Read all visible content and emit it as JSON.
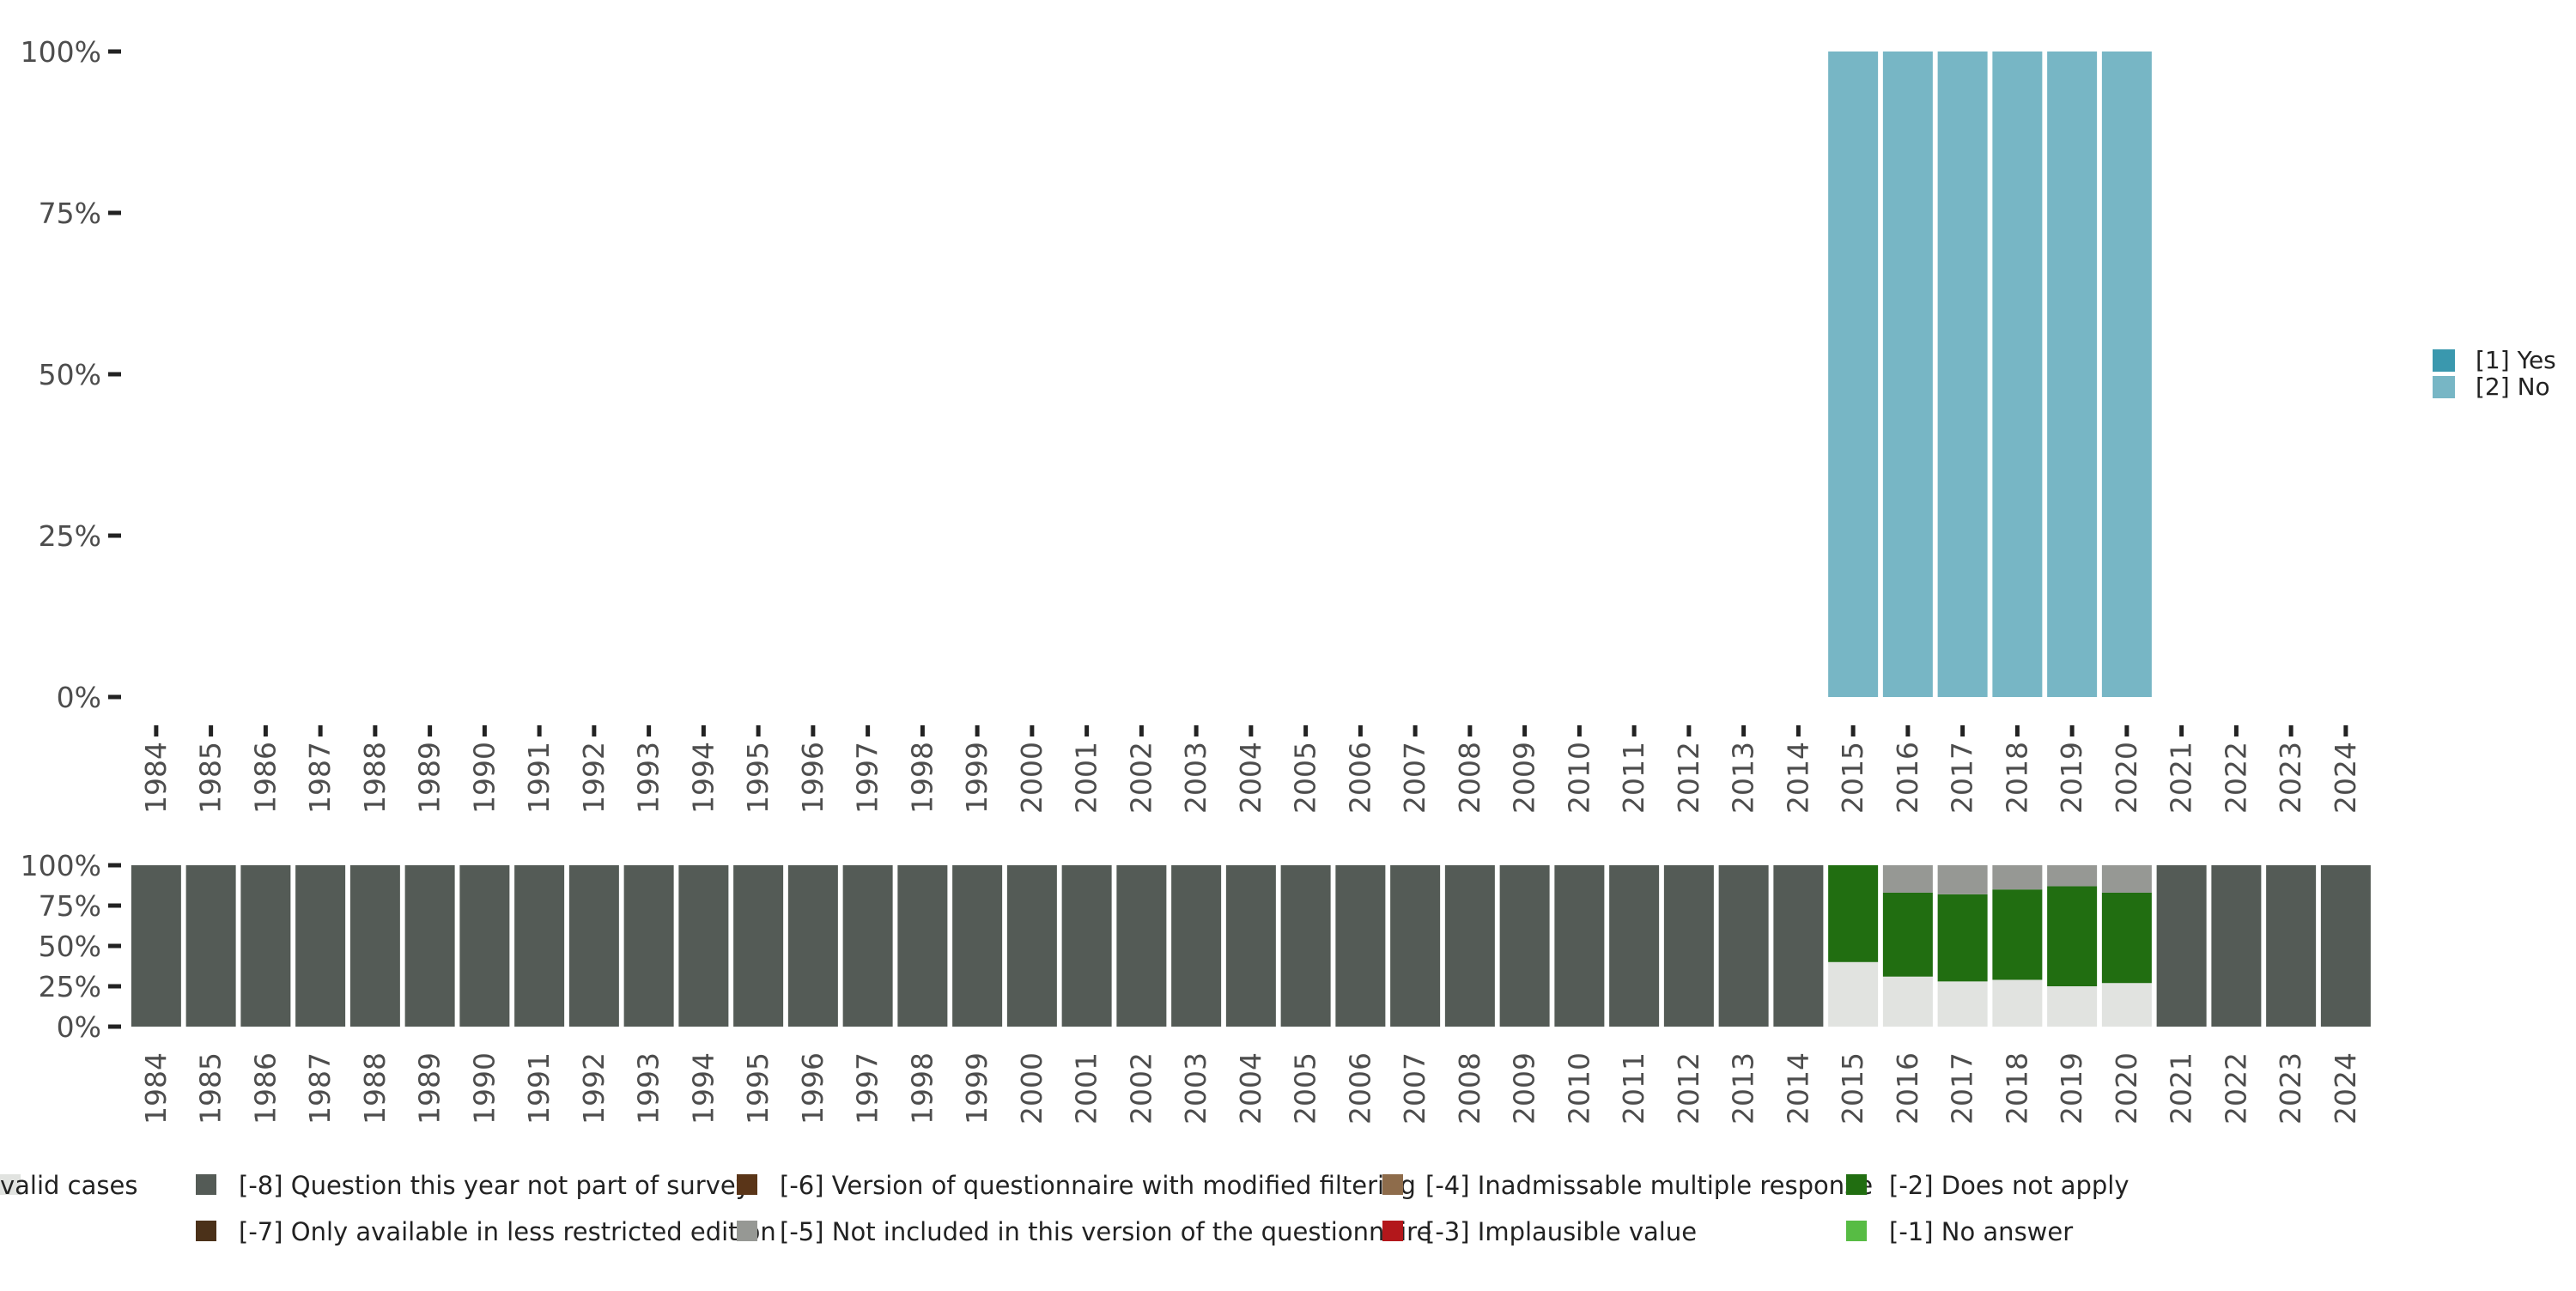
{
  "chart_data": [
    {
      "type": "bar",
      "stacked": true,
      "percent": true,
      "categories": [
        "1984",
        "1985",
        "1986",
        "1987",
        "1988",
        "1989",
        "1990",
        "1991",
        "1992",
        "1993",
        "1994",
        "1995",
        "1996",
        "1997",
        "1998",
        "1999",
        "2000",
        "2001",
        "2002",
        "2003",
        "2004",
        "2005",
        "2006",
        "2007",
        "2008",
        "2009",
        "2010",
        "2011",
        "2012",
        "2013",
        "2014",
        "2015",
        "2016",
        "2017",
        "2018",
        "2019",
        "2020",
        "2021",
        "2022",
        "2023",
        "2024"
      ],
      "series": [
        {
          "name": "[1] Yes",
          "color": "#3a98ae",
          "values": [
            null,
            null,
            null,
            null,
            null,
            null,
            null,
            null,
            null,
            null,
            null,
            null,
            null,
            null,
            null,
            null,
            null,
            null,
            null,
            null,
            null,
            null,
            null,
            null,
            null,
            null,
            null,
            null,
            null,
            null,
            null,
            0,
            0,
            0,
            0,
            0,
            0,
            null,
            null,
            null,
            null
          ]
        },
        {
          "name": "[2] No",
          "color": "#77b6c5",
          "values": [
            null,
            null,
            null,
            null,
            null,
            null,
            null,
            null,
            null,
            null,
            null,
            null,
            null,
            null,
            null,
            null,
            null,
            null,
            null,
            null,
            null,
            null,
            null,
            null,
            null,
            null,
            null,
            null,
            null,
            null,
            null,
            100,
            100,
            100,
            100,
            100,
            100,
            null,
            null,
            null,
            null
          ]
        }
      ],
      "yticks": [
        "0%",
        "25%",
        "50%",
        "75%",
        "100%"
      ],
      "ylim": [
        0,
        100
      ],
      "grid": false,
      "legend": "right"
    },
    {
      "type": "bar",
      "stacked": true,
      "percent": true,
      "categories": [
        "1984",
        "1985",
        "1986",
        "1987",
        "1988",
        "1989",
        "1990",
        "1991",
        "1992",
        "1993",
        "1994",
        "1995",
        "1996",
        "1997",
        "1998",
        "1999",
        "2000",
        "2001",
        "2002",
        "2003",
        "2004",
        "2005",
        "2006",
        "2007",
        "2008",
        "2009",
        "2010",
        "2011",
        "2012",
        "2013",
        "2014",
        "2015",
        "2016",
        "2017",
        "2018",
        "2019",
        "2020",
        "2021",
        "2022",
        "2023",
        "2024"
      ],
      "series": [
        {
          "name": "valid cases",
          "color": "#e1e3e0",
          "values": [
            0,
            0,
            0,
            0,
            0,
            0,
            0,
            0,
            0,
            0,
            0,
            0,
            0,
            0,
            0,
            0,
            0,
            0,
            0,
            0,
            0,
            0,
            0,
            0,
            0,
            0,
            0,
            0,
            0,
            0,
            0,
            40,
            31,
            28,
            29,
            25,
            27,
            0,
            0,
            0,
            0
          ]
        },
        {
          "name": "[-2] Does not apply",
          "color": "#216e11",
          "values": [
            0,
            0,
            0,
            0,
            0,
            0,
            0,
            0,
            0,
            0,
            0,
            0,
            0,
            0,
            0,
            0,
            0,
            0,
            0,
            0,
            0,
            0,
            0,
            0,
            0,
            0,
            0,
            0,
            0,
            0,
            0,
            60,
            52,
            54,
            56,
            62,
            56,
            0,
            0,
            0,
            0
          ]
        },
        {
          "name": "[-5] Not included in this version of the questionnaire",
          "color": "#969894",
          "values": [
            0,
            0,
            0,
            0,
            0,
            0,
            0,
            0,
            0,
            0,
            0,
            0,
            0,
            0,
            0,
            0,
            0,
            0,
            0,
            0,
            0,
            0,
            0,
            0,
            0,
            0,
            0,
            0,
            0,
            0,
            0,
            0,
            17,
            18,
            15,
            13,
            17,
            0,
            0,
            0,
            0
          ]
        },
        {
          "name": "[-8] Question this year not part of survey",
          "color": "#545b56",
          "values": [
            100,
            100,
            100,
            100,
            100,
            100,
            100,
            100,
            100,
            100,
            100,
            100,
            100,
            100,
            100,
            100,
            100,
            100,
            100,
            100,
            100,
            100,
            100,
            100,
            100,
            100,
            100,
            100,
            100,
            100,
            100,
            0,
            0,
            0,
            0,
            0,
            0,
            100,
            100,
            100,
            100
          ]
        }
      ],
      "yticks": [
        "0%",
        "25%",
        "50%",
        "75%",
        "100%"
      ],
      "ylim": [
        0,
        100
      ],
      "grid": false,
      "legend": "bottom"
    }
  ],
  "legend_top": [
    {
      "label": "[1] Yes",
      "color": "#3a98ae"
    },
    {
      "label": "[2] No",
      "color": "#77b6c5"
    }
  ],
  "legend_bottom": [
    {
      "label": "[-8] Question this year not part of survey",
      "color": "#545b56"
    },
    {
      "label": "[-7] Only available in less restricted edition",
      "color": "#4b3119"
    },
    {
      "label": "[-6] Version of questionnaire with modified filtering",
      "color": "#5a3518"
    },
    {
      "label": "[-5] Not included in this version of the questionnaire",
      "color": "#969894"
    },
    {
      "label": "[-4] Inadmissable multiple response",
      "color": "#8e6c4b"
    },
    {
      "label": "[-3] Implausible value",
      "color": "#b3171b"
    },
    {
      "label": "[-2] Does not apply",
      "color": "#216e11"
    },
    {
      "label": "[-1] No answer",
      "color": "#57bc44"
    },
    {
      "label": "valid cases",
      "color": "#e1e3e0"
    }
  ]
}
